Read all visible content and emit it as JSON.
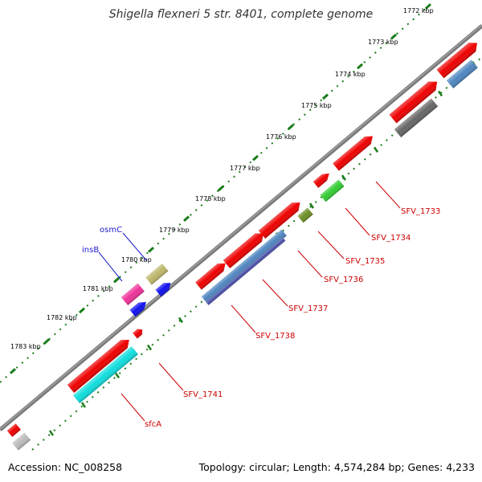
{
  "title": "Shigella flexneri 5 str. 8401, complete genome",
  "footer": {
    "accession": "Accession: NC_008258",
    "stats": "Topology: circular; Length: 4,574,284 bp; Genes: 4,233"
  },
  "colors": {
    "backbone": "#7a7a7a",
    "tick_dots": "#1a7d1a",
    "gene_label_line": "#cc0000",
    "named_gene_line": "#1a1acc"
  },
  "kbp_marks": [
    {
      "label": "1772 kbp",
      "pos": 1772
    },
    {
      "label": "1773 kbp",
      "pos": 1773
    },
    {
      "label": "1774 kbp",
      "pos": 1774
    },
    {
      "label": "1775 kbp",
      "pos": 1775
    },
    {
      "label": "1776 kbp",
      "pos": 1776
    },
    {
      "label": "1777 kbp",
      "pos": 1777
    },
    {
      "label": "1778 kbp",
      "pos": 1778
    },
    {
      "label": "1779 kbp",
      "pos": 1779
    },
    {
      "label": "1780 kbp",
      "pos": 1780
    },
    {
      "label": "1781 kbp",
      "pos": 1781
    },
    {
      "label": "1782 kbp",
      "pos": 1782
    },
    {
      "label": "1783 kbp",
      "pos": 1783
    }
  ],
  "gene_labels": [
    {
      "id": "SFV_1733",
      "label": "SFV_1733",
      "color": "#cc0000"
    },
    {
      "id": "SFV_1734",
      "label": "SFV_1734",
      "color": "#cc0000"
    },
    {
      "id": "SFV_1735",
      "label": "SFV_1735",
      "color": "#cc0000"
    },
    {
      "id": "SFV_1736",
      "label": "SFV_1736",
      "color": "#cc0000"
    },
    {
      "id": "SFV_1737",
      "label": "SFV_1737",
      "color": "#cc0000"
    },
    {
      "id": "SFV_1738",
      "label": "SFV_1738",
      "color": "#cc0000"
    },
    {
      "id": "SFV_1741",
      "label": "SFV_1741",
      "color": "#cc0000"
    },
    {
      "id": "sfcA",
      "label": "sfcA",
      "color": "#cc0000"
    },
    {
      "id": "osmC",
      "label": "osmC",
      "color": "#1a1acc"
    },
    {
      "id": "insB",
      "label": "insB",
      "color": "#1a1acc"
    }
  ],
  "feature_colors": {
    "gene": "#ee0000",
    "cds_steel": "#4f86c0",
    "cds_gray": "#666666",
    "cds_green": "#33cc33",
    "cds_olive": "#6b8e23",
    "cds_slate": "#4a4fa8",
    "cds_cyan": "#11dddd",
    "cds_khaki": "#bdb76b",
    "cds_magenta": "#ee3399",
    "cds_blue": "#1111ee",
    "cds_light": "#bbbbbb"
  }
}
